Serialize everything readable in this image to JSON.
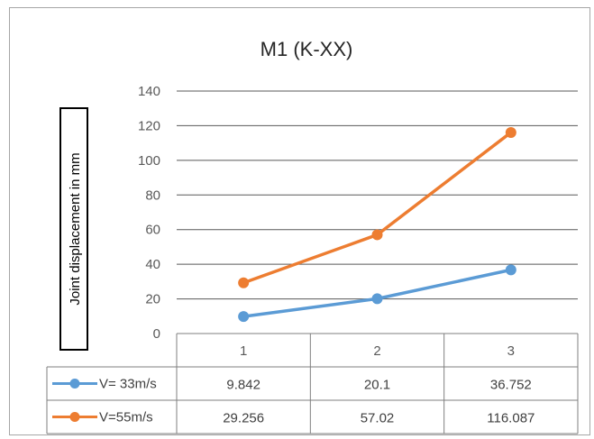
{
  "chart_data": {
    "type": "line",
    "title": "M1 (K-XX)",
    "ylabel": "Joint displacement in mm",
    "xlabel": "",
    "categories": [
      "1",
      "2",
      "3"
    ],
    "ylim": [
      0,
      140
    ],
    "yticks": [
      0,
      20,
      40,
      60,
      80,
      100,
      120,
      140
    ],
    "grid": true,
    "legend": "data-table",
    "series": [
      {
        "name": "V= 33m/s",
        "color": "#5b9bd5",
        "values": [
          9.842,
          20.1,
          36.752
        ],
        "labels": [
          "9.842",
          "20.1",
          "36.752"
        ]
      },
      {
        "name": "V=55m/s",
        "color": "#ed7d31",
        "values": [
          29.256,
          57.02,
          116.087
        ],
        "labels": [
          "29.256",
          "57.02",
          "116.087"
        ]
      }
    ]
  }
}
